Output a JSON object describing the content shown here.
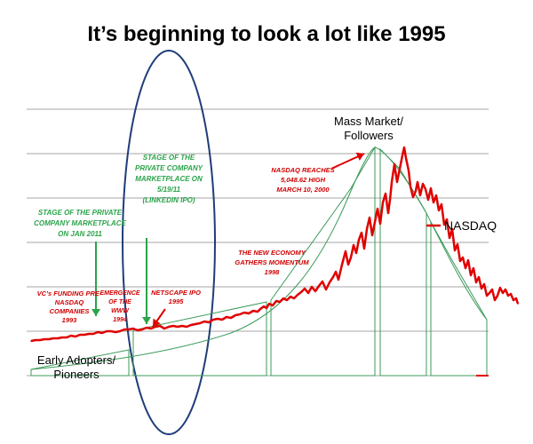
{
  "chart_data": {
    "type": "line",
    "title": "It’s beginning to look a lot like 1995",
    "series": [
      {
        "name": "NASDAQ",
        "color": "#e00000",
        "points": [
          [
            0,
            384
          ],
          [
            5,
            383
          ],
          [
            10,
            383
          ],
          [
            15,
            382
          ],
          [
            20,
            382
          ],
          [
            25,
            381
          ],
          [
            30,
            381
          ],
          [
            35,
            380
          ],
          [
            40,
            380
          ],
          [
            45,
            378
          ],
          [
            50,
            379
          ],
          [
            55,
            377
          ],
          [
            60,
            377
          ],
          [
            65,
            376
          ],
          [
            70,
            376
          ],
          [
            75,
            374
          ],
          [
            80,
            375
          ],
          [
            85,
            373
          ],
          [
            90,
            373
          ],
          [
            95,
            374
          ],
          [
            100,
            373
          ],
          [
            105,
            371
          ],
          [
            110,
            371
          ],
          [
            115,
            370
          ],
          [
            120,
            372
          ],
          [
            125,
            371
          ],
          [
            130,
            369
          ],
          [
            135,
            370
          ],
          [
            140,
            368
          ],
          [
            145,
            367
          ],
          [
            150,
            370
          ],
          [
            155,
            368
          ],
          [
            160,
            367
          ],
          [
            165,
            368
          ],
          [
            170,
            367
          ],
          [
            175,
            368
          ],
          [
            180,
            366
          ],
          [
            185,
            365
          ],
          [
            190,
            364
          ],
          [
            195,
            362
          ],
          [
            200,
            363
          ],
          [
            205,
            360
          ],
          [
            210,
            359
          ],
          [
            215,
            360
          ],
          [
            220,
            357
          ],
          [
            225,
            358
          ],
          [
            230,
            355
          ],
          [
            235,
            354
          ],
          [
            240,
            352
          ],
          [
            245,
            353
          ],
          [
            250,
            350
          ],
          [
            255,
            351
          ],
          [
            258,
            348
          ],
          [
            262,
            345
          ],
          [
            265,
            347
          ],
          [
            268,
            342
          ],
          [
            272,
            344
          ],
          [
            276,
            339
          ],
          [
            280,
            340
          ],
          [
            284,
            336
          ],
          [
            288,
            338
          ],
          [
            292,
            334
          ],
          [
            296,
            336
          ],
          [
            300,
            332
          ],
          [
            304,
            329
          ],
          [
            308,
            325
          ],
          [
            312,
            330
          ],
          [
            316,
            323
          ],
          [
            320,
            328
          ],
          [
            324,
            322
          ],
          [
            328,
            317
          ],
          [
            332,
            326
          ],
          [
            336,
            318
          ],
          [
            340,
            312
          ],
          [
            343,
            306
          ],
          [
            346,
            315
          ],
          [
            350,
            298
          ],
          [
            354,
            283
          ],
          [
            357,
            298
          ],
          [
            360,
            290
          ],
          [
            363,
            276
          ],
          [
            366,
            285
          ],
          [
            369,
            270
          ],
          [
            372,
            262
          ],
          [
            375,
            280
          ],
          [
            378,
            258
          ],
          [
            381,
            245
          ],
          [
            384,
            265
          ],
          [
            387,
            250
          ],
          [
            390,
            235
          ],
          [
            393,
            252
          ],
          [
            396,
            228
          ],
          [
            399,
            218
          ],
          [
            402,
            240
          ],
          [
            404,
            225
          ],
          [
            406,
            205
          ],
          [
            409,
            185
          ],
          [
            412,
            205
          ],
          [
            415,
            190
          ],
          [
            418,
            175
          ],
          [
            420,
            166
          ],
          [
            422,
            178
          ],
          [
            425,
            192
          ],
          [
            427,
            210
          ],
          [
            430,
            222
          ],
          [
            433,
            215
          ],
          [
            435,
            205
          ],
          [
            438,
            220
          ],
          [
            441,
            207
          ],
          [
            444,
            213
          ],
          [
            447,
            225
          ],
          [
            450,
            212
          ],
          [
            453,
            228
          ],
          [
            456,
            220
          ],
          [
            459,
            237
          ],
          [
            462,
            230
          ],
          [
            465,
            253
          ],
          [
            468,
            247
          ],
          [
            471,
            268
          ],
          [
            474,
            258
          ],
          [
            477,
            282
          ],
          [
            480,
            275
          ],
          [
            483,
            294
          ],
          [
            486,
            290
          ],
          [
            489,
            302
          ],
          [
            492,
            293
          ],
          [
            495,
            310
          ],
          [
            498,
            302
          ],
          [
            501,
            318
          ],
          [
            504,
            312
          ],
          [
            507,
            325
          ],
          [
            510,
            320
          ],
          [
            513,
            333
          ],
          [
            516,
            330
          ],
          [
            519,
            326
          ],
          [
            522,
            338
          ],
          [
            525,
            333
          ],
          [
            528,
            324
          ],
          [
            531,
            330
          ],
          [
            534,
            326
          ],
          [
            537,
            333
          ],
          [
            540,
            331
          ],
          [
            543,
            338
          ],
          [
            546,
            336
          ],
          [
            548,
            342
          ]
        ]
      }
    ],
    "legend": "right",
    "grid": true,
    "annotations": [
      {
        "name": "vc-funding",
        "lines": [
          "VC’s FUNDING PRE-",
          "NASDAQ",
          "COMPANIES",
          "1993"
        ]
      },
      {
        "name": "emergence-www",
        "lines": [
          "EMERGENCE",
          "OF THE",
          "WWW",
          "1994"
        ]
      },
      {
        "name": "netscape-ipo",
        "lines": [
          "NETSCAPE IPO",
          "1995"
        ]
      },
      {
        "name": "new-economy",
        "lines": [
          "THE NEW ECONOMY",
          "GATHERS MOMENTUM",
          "1998"
        ]
      },
      {
        "name": "nasdaq-peak",
        "lines": [
          "NASDAQ REACHES",
          "5,048.62  HIGH",
          "MARCH 10, 2000"
        ]
      },
      {
        "name": "private-jan-2011",
        "lines": [
          "STAGE OF THE PRIVATE",
          "COMPANY MARKETPLACE",
          "ON JAN 2011"
        ]
      },
      {
        "name": "private-linkedin",
        "lines": [
          "STAGE OF THE",
          "PRIVATE COMPANY",
          "MARKETPLACE ON",
          "5/19/11",
          "(LINKEDIN IPO)"
        ]
      },
      {
        "name": "mass-market",
        "lines": [
          "Mass Market/",
          "Followers"
        ]
      },
      {
        "name": "early-adopters",
        "lines": [
          "Early Adopters/",
          "Pioneers"
        ]
      }
    ]
  }
}
